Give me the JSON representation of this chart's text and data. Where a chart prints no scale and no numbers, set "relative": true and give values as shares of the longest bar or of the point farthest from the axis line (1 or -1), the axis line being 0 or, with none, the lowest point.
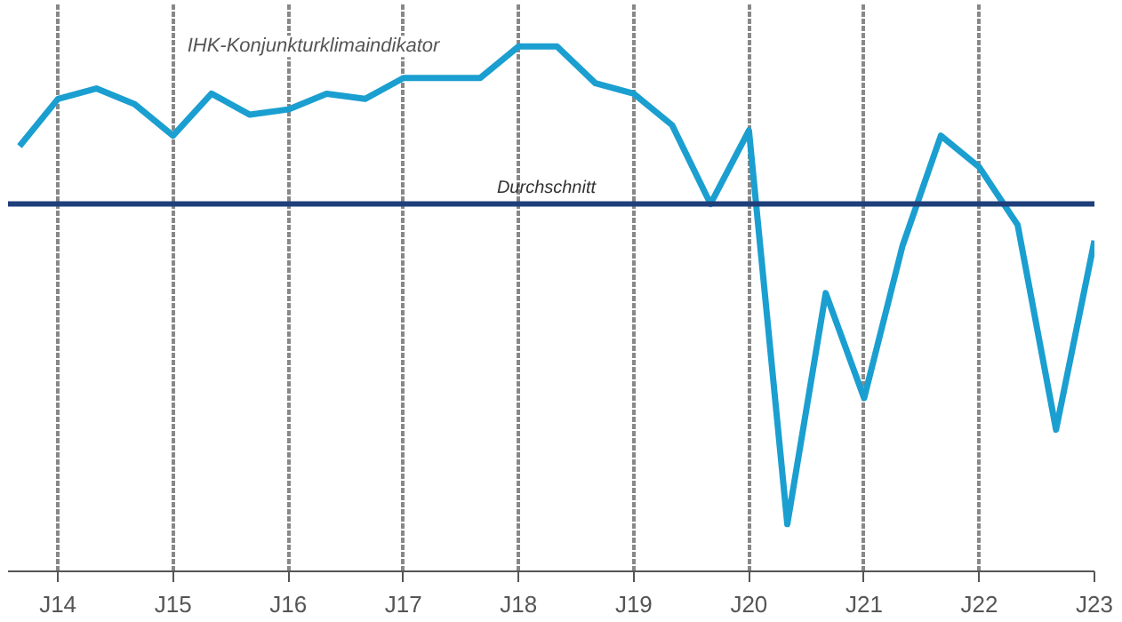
{
  "chart_data": {
    "type": "line",
    "relative": true,
    "categories": [
      null,
      "J14",
      null,
      null,
      "J15",
      null,
      null,
      "J16",
      null,
      null,
      "J17",
      null,
      null,
      "J18",
      null,
      null,
      "J19",
      null,
      null,
      "J20",
      null,
      null,
      "J21",
      null,
      null,
      "J22",
      null,
      null,
      "J23"
    ],
    "series": [
      {
        "name": "IHK-Konjunkturklimaindikator",
        "color": "#1a9fd0",
        "values": [
          0.81,
          0.9,
          0.92,
          0.89,
          0.83,
          0.91,
          0.87,
          0.88,
          0.91,
          0.9,
          0.94,
          0.94,
          0.94,
          1.0,
          1.0,
          0.93,
          0.91,
          0.85,
          0.7,
          0.84,
          0.09,
          0.53,
          0.33,
          0.62,
          0.83,
          0.77,
          0.66,
          0.27,
          0.63
        ]
      }
    ],
    "ref_lines": [
      {
        "axis": "y",
        "value": 0.7,
        "label": "Durchschnitt",
        "color": "#1f3f7a"
      }
    ],
    "grid": "x",
    "marker": "none",
    "line_style": "solid",
    "tick_labels": "x"
  }
}
